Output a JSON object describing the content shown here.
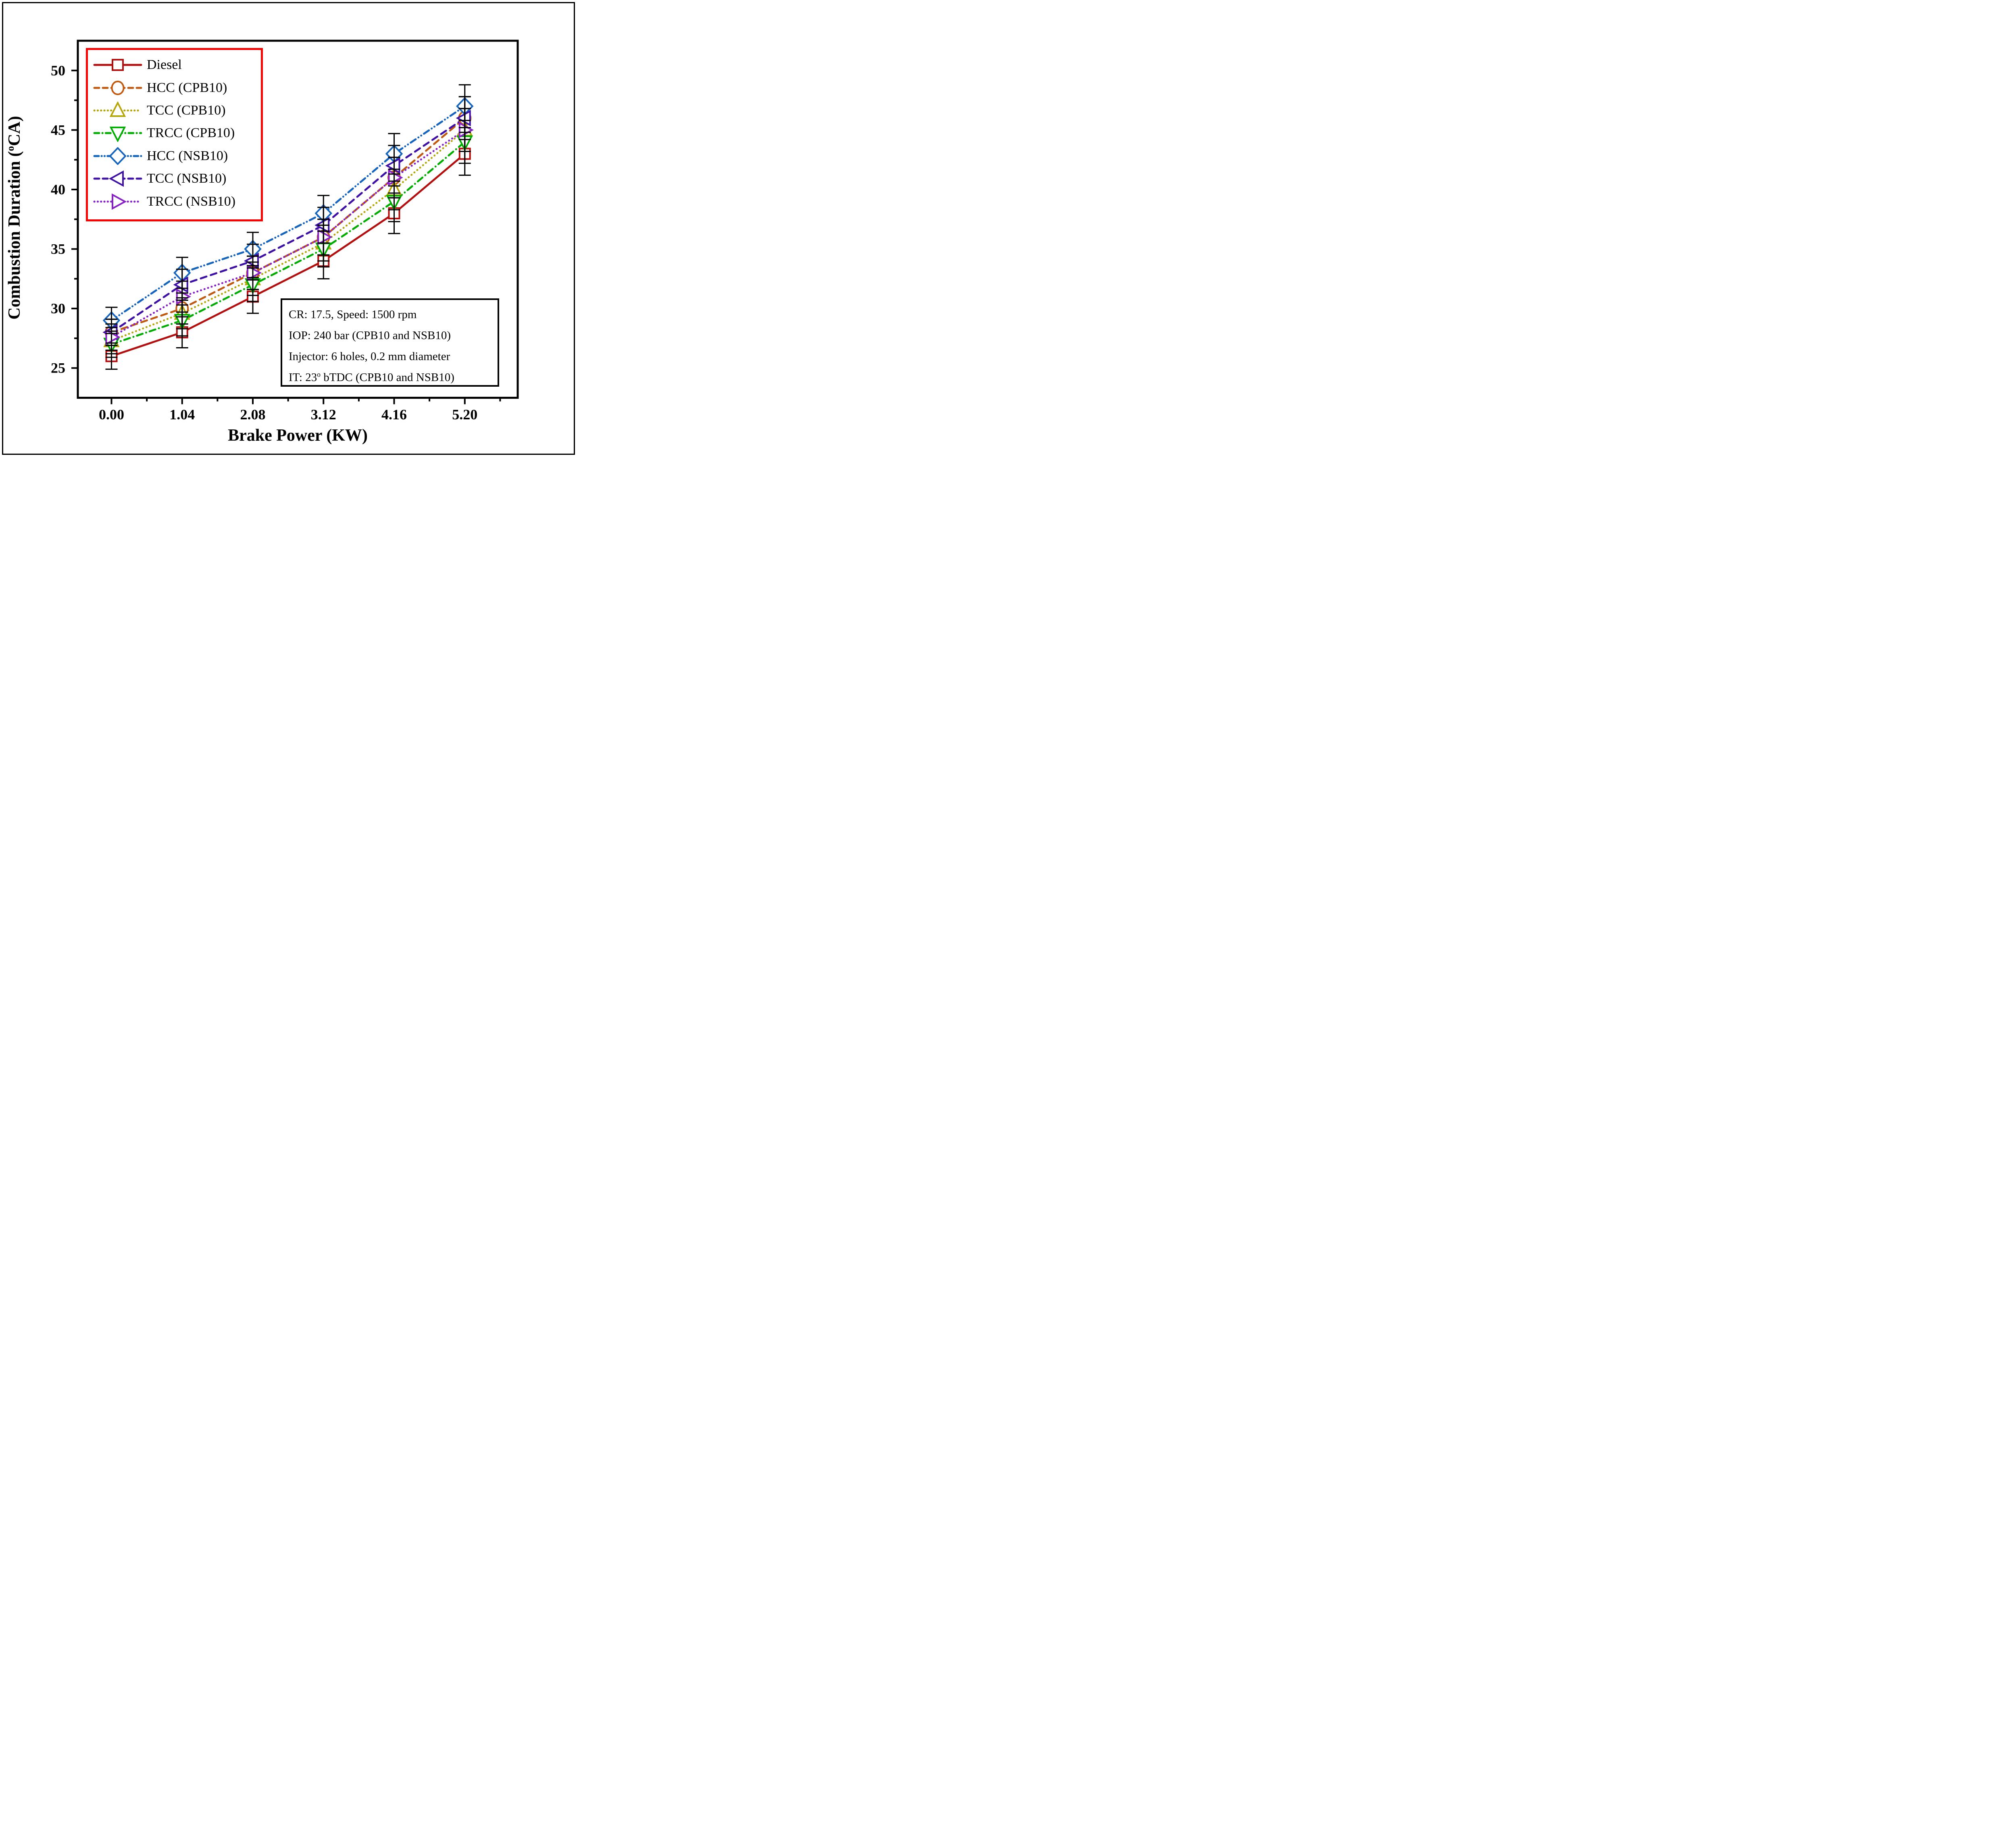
{
  "figure": {
    "background": "#FFFFFF",
    "border_color": "#000000"
  },
  "chart_data": {
    "type": "line",
    "title": "",
    "xlabel": "Brake Power (KW)",
    "ylabel": "Combustion Duration (oCA)",
    "ylabel_parts": {
      "pre": "Combustion Duration (",
      "sup": "o",
      "post": "CA)"
    },
    "xlim": [
      -0.5,
      6.0
    ],
    "ylim": [
      22.5,
      52.5
    ],
    "grid": false,
    "x": [
      0.0,
      1.04,
      2.08,
      3.12,
      4.16,
      5.2
    ],
    "x_tick_labels": [
      "0.00",
      "1.04",
      "2.08",
      "3.12",
      "4.16",
      "5.20"
    ],
    "x_minor_ticks": [
      0.52,
      1.56,
      2.6,
      3.64,
      4.68,
      5.72
    ],
    "y_ticks": [
      25,
      30,
      35,
      40,
      45,
      50
    ],
    "y_minor_ticks": [
      27.5,
      32.5,
      37.5,
      42.5,
      47.5
    ],
    "error_bars": [
      1.1,
      1.3,
      1.4,
      1.5,
      1.7,
      1.8
    ],
    "error_bar_color": "#000000",
    "series": [
      {
        "name": "Diesel",
        "color": "#B40F0F",
        "marker": "square",
        "linestyle": "solid",
        "values": [
          26,
          28,
          31,
          34,
          38,
          43
        ]
      },
      {
        "name": "HCC (CPB10)",
        "color": "#C05A11",
        "marker": "circle",
        "linestyle": "dash",
        "values": [
          28,
          30,
          33,
          36,
          41,
          46
        ]
      },
      {
        "name": "TCC (CPB10)",
        "color": "#B5A70B",
        "marker": "triangle-up",
        "linestyle": "dot",
        "values": [
          27.3,
          29.6,
          32.5,
          35.5,
          40,
          45
        ]
      },
      {
        "name": "TRCC (CPB10)",
        "color": "#00AD00",
        "marker": "triangle-down",
        "linestyle": "dash-dot",
        "values": [
          27,
          29,
          32,
          35,
          39,
          44
        ]
      },
      {
        "name": "HCC (NSB10)",
        "color": "#1565BF",
        "marker": "diamond",
        "linestyle": "dash-dot-dot",
        "values": [
          29,
          33,
          35,
          38,
          43,
          47
        ]
      },
      {
        "name": "TCC (NSB10)",
        "color": "#3F10A5",
        "marker": "triangle-left",
        "linestyle": "dash",
        "values": [
          28,
          32,
          34,
          37,
          42,
          46
        ]
      },
      {
        "name": "TRCC (NSB10)",
        "color": "#8820C8",
        "marker": "triangle-right",
        "linestyle": "dot",
        "values": [
          27.6,
          31,
          33,
          36,
          41,
          45
        ]
      }
    ],
    "legend": {
      "position": "top-left",
      "border_color": "#FF0000"
    },
    "annotation_box": {
      "lines": [
        {
          "pre": "CR: 17.5, Speed: 1500 rpm",
          "sup": "",
          "post": ""
        },
        {
          "pre": "IOP: 240 bar (CPB10 and NSB10)",
          "sup": "",
          "post": ""
        },
        {
          "pre": "Injector: 6 holes, 0.2 mm diameter",
          "sup": "",
          "post": ""
        },
        {
          "pre": "IT: 23",
          "sup": "o",
          "post": " bTDC (CPB10 and NSB10)"
        }
      ]
    }
  }
}
